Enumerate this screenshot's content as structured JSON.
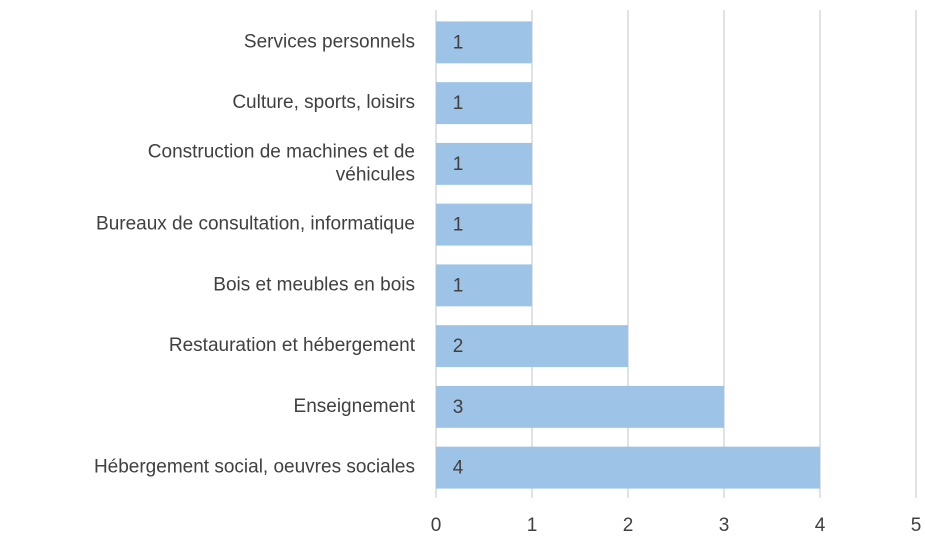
{
  "chart_data": {
    "type": "bar",
    "orientation": "horizontal",
    "categories": [
      "Services personnels",
      "Culture, sports, loisirs",
      "Construction de machines et de\nvéhicules",
      "Bureaux de consultation, informatique",
      "Bois et meubles en bois",
      "Restauration et hébergement",
      "Enseignement",
      "Hébergement social, oeuvres sociales"
    ],
    "values": [
      1,
      1,
      1,
      1,
      1,
      2,
      3,
      4
    ],
    "color": "#9dc3e6",
    "xlim": [
      0,
      5
    ],
    "xticks": [
      0,
      1,
      2,
      3,
      4,
      5
    ],
    "grid": true,
    "data_labels": true
  }
}
